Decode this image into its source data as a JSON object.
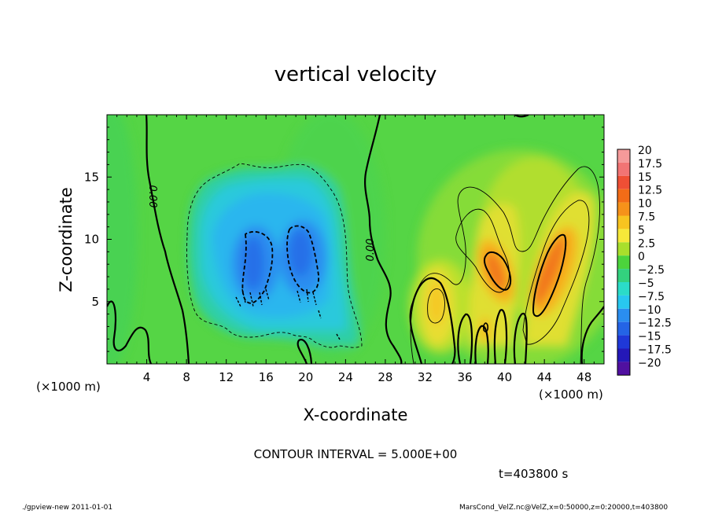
{
  "chart_data": {
    "type": "heatmap",
    "title": "vertical velocity",
    "xlabel": "X-coordinate",
    "ylabel": "Z-coordinate",
    "x_unit": "(×1000 m)",
    "z_unit": "(×1000 m)",
    "xlim": [
      0,
      50
    ],
    "ylim": [
      0,
      20
    ],
    "x_ticks": [
      "4",
      "8",
      "12",
      "16",
      "20",
      "24",
      "28",
      "32",
      "36",
      "40",
      "44",
      "48"
    ],
    "y_ticks": [
      "5",
      "10",
      "15"
    ],
    "colorbar": {
      "levels": [
        "20",
        "17.5",
        "15",
        "12.5",
        "10",
        "7.5",
        "5",
        "2.5",
        "0",
        "−2.5",
        "−5",
        "−7.5",
        "−10",
        "−12.5",
        "−15",
        "−17.5",
        "−20"
      ],
      "colors": [
        "#f59a9a",
        "#f27474",
        "#ef4f35",
        "#f36c17",
        "#f6921a",
        "#f8c420",
        "#f6e839",
        "#a9df2c",
        "#4cd43c",
        "#33d17e",
        "#2bdcc8",
        "#28c8f0",
        "#2a8ef0",
        "#2464e6",
        "#1f38d8",
        "#2418b8",
        "#5010a0"
      ]
    },
    "contour_labels": [
      "0.00",
      "0.00"
    ],
    "contour_interval_text": "CONTOUR INTERVAL = 5.000E+00",
    "time_text": "t=403800 s",
    "regions": [
      {
        "name": "downdraft-left",
        "x": 14.5,
        "z": 7.5,
        "w": -11
      },
      {
        "name": "downdraft-right",
        "x": 19.5,
        "z": 8.5,
        "w": -11
      },
      {
        "name": "updraft-mid",
        "x": 39.3,
        "z": 8.0,
        "w": 11
      },
      {
        "name": "updraft-right",
        "x": 44.5,
        "z": 8.0,
        "w": 12
      }
    ]
  },
  "footer": {
    "left": "./gpview-new   2011-01-01",
    "right": "MarsCond_VelZ.nc@VelZ,x=0:50000,z=0:20000,t=403800"
  }
}
